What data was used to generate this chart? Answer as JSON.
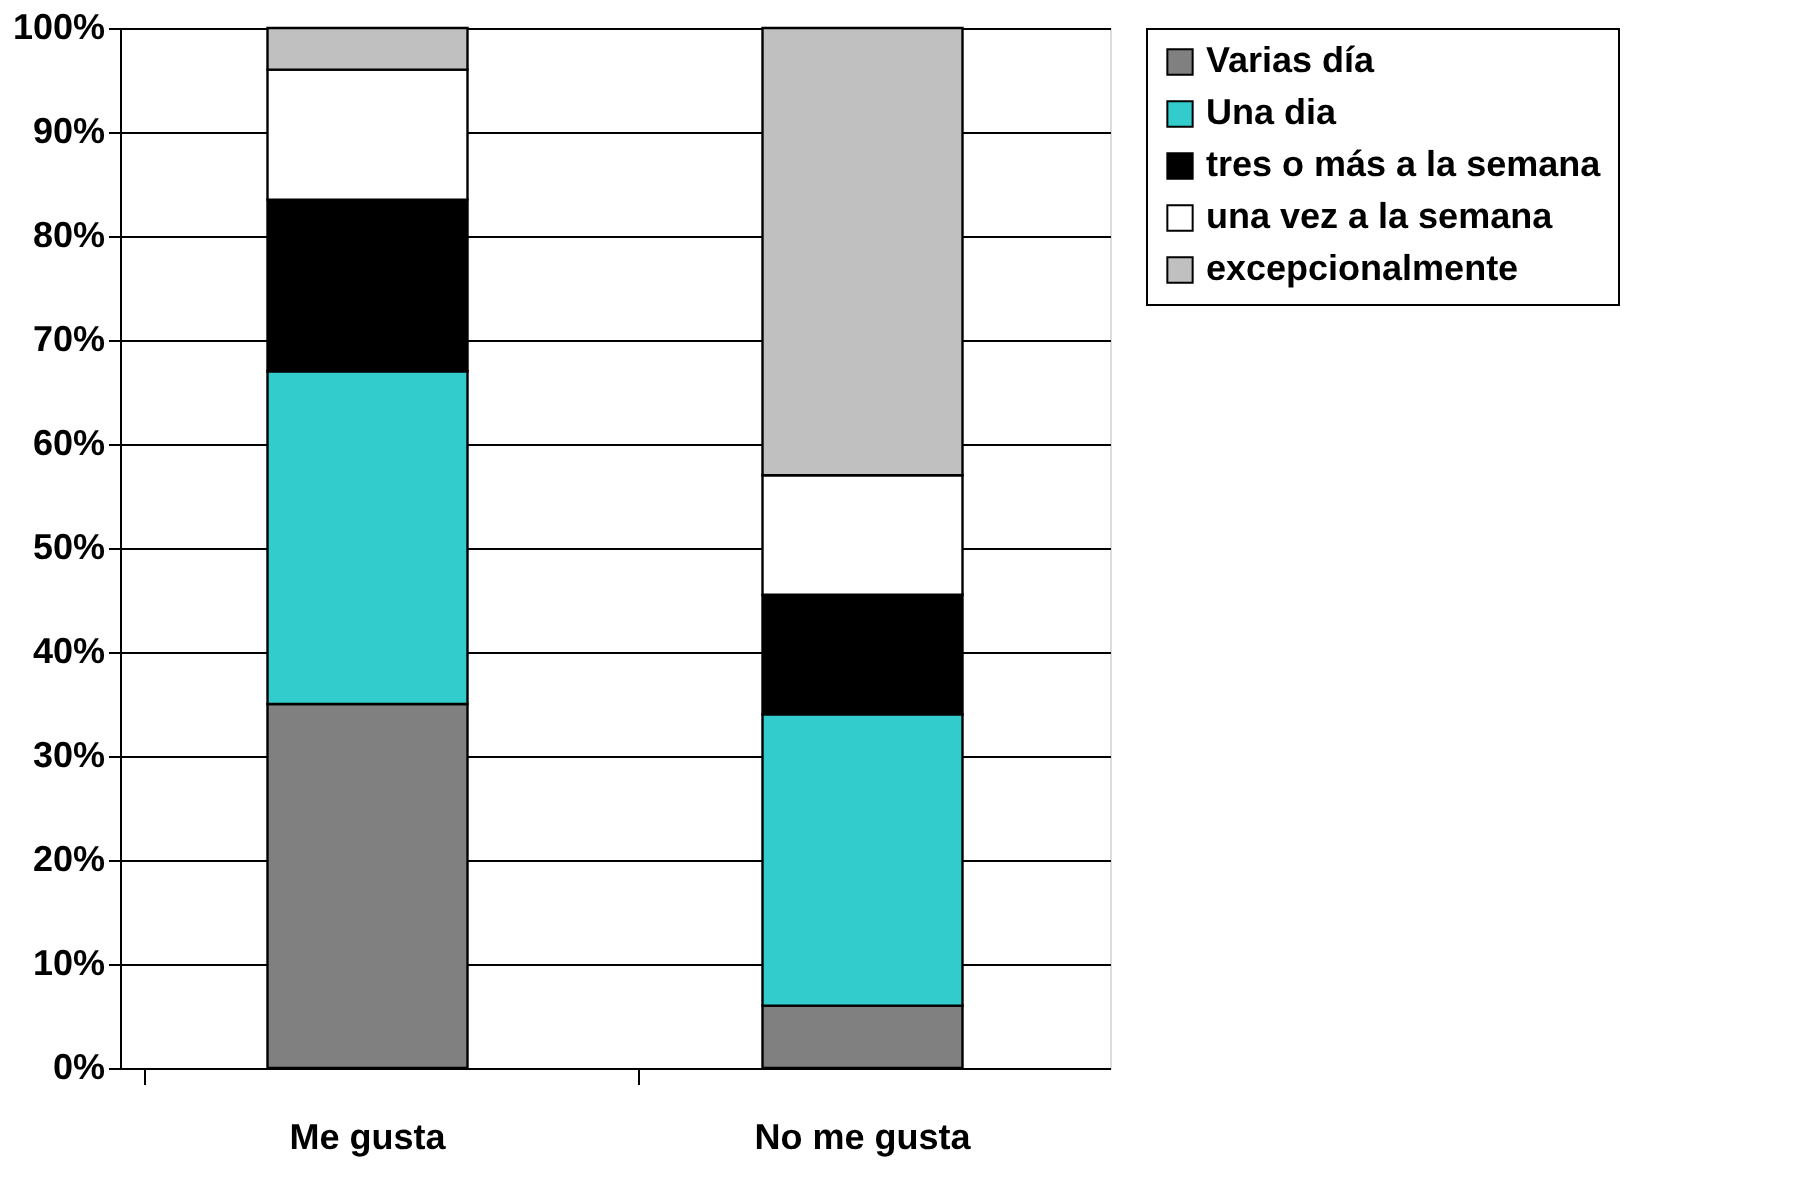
{
  "chart_data": {
    "type": "bar",
    "stacked": true,
    "categories": [
      "Me gusta",
      "No me gusta"
    ],
    "series": [
      {
        "name": "Varias día",
        "color": "#808080",
        "values": [
          35,
          6
        ]
      },
      {
        "name": "Una dia",
        "color": "#33cccc",
        "values": [
          32,
          28
        ]
      },
      {
        "name": "tres o más a la semana",
        "color": "#000000",
        "values": [
          16.5,
          11.5
        ]
      },
      {
        "name": "una vez a la semana",
        "color": "#ffffff",
        "values": [
          12.5,
          11.5
        ]
      },
      {
        "name": "excepcionalmente",
        "color": "#c0c0c0",
        "values": [
          4,
          43
        ]
      }
    ],
    "ylim": [
      0,
      100
    ],
    "yticks": [
      {
        "value": 0,
        "label": "0%"
      },
      {
        "value": 10,
        "label": "10%"
      },
      {
        "value": 20,
        "label": "20%"
      },
      {
        "value": 30,
        "label": "30%"
      },
      {
        "value": 40,
        "label": "40%"
      },
      {
        "value": 50,
        "label": "50%"
      },
      {
        "value": 60,
        "label": "60%"
      },
      {
        "value": 70,
        "label": "70%"
      },
      {
        "value": 80,
        "label": "80%"
      },
      {
        "value": 90,
        "label": "90%"
      },
      {
        "value": 100,
        "label": "100%"
      }
    ],
    "grid": "y",
    "legend": "right"
  }
}
